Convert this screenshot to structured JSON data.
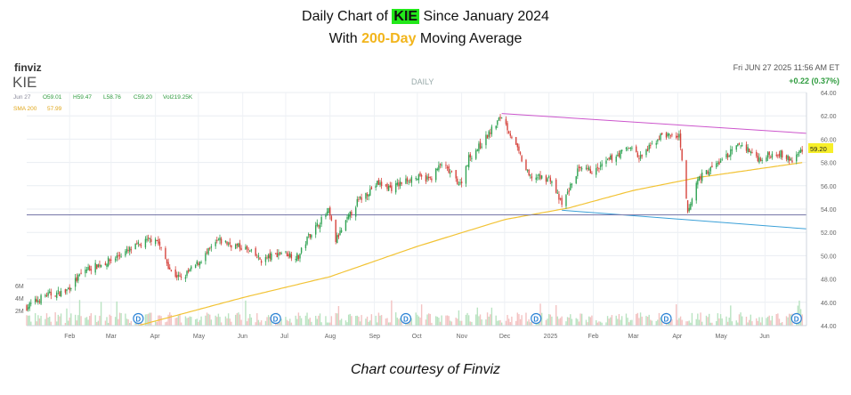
{
  "title": {
    "line1_prefix": "Daily Chart of ",
    "ticker": "KIE",
    "line1_suffix": " Since January 2024",
    "line2_prefix": "With ",
    "sma_label": "200-Day",
    "line2_suffix": " Moving Average"
  },
  "header": {
    "brand": "finviz",
    "ticker": "KIE",
    "interval": "DAILY",
    "datetime": "Fri JUN 27 2025 11:56 AM ET",
    "change": "+0.22 (0.37%)",
    "ohlc": {
      "date": "Jun 27",
      "open": "O59.01",
      "high": "H59.47",
      "low": "L58.76",
      "close": "C59.20",
      "volume": "Vol219.25K"
    },
    "sma": {
      "label": "SMA 200",
      "value": "57.99"
    },
    "last_price": "59.20"
  },
  "credit": "Chart courtesy of Finviz",
  "colors": {
    "up": "#31a354",
    "down": "#d6443d",
    "sma": "#f2c335",
    "upper_trend": "#cc55cc",
    "lower_trend": "#3aa0d8",
    "horizontal": "#7676a8",
    "dividend": "#2b83d6"
  },
  "chart_data": {
    "type": "candlestick",
    "ylim": [
      44,
      64
    ],
    "y_ticks": [
      "44.00",
      "46.00",
      "48.00",
      "50.00",
      "52.00",
      "54.00",
      "56.00",
      "58.00",
      "60.00",
      "62.00",
      "64.00"
    ],
    "x_ticks": [
      "Feb",
      "Mar",
      "Apr",
      "May",
      "Jun",
      "Jul",
      "Aug",
      "Sep",
      "Oct",
      "Nov",
      "Dec",
      "2025",
      "Feb",
      "Mar",
      "Apr",
      "May",
      "Jun"
    ],
    "volume_ticks": [
      "6M",
      "4M",
      "2M"
    ],
    "dividend_markers": [
      "D",
      "D",
      "D",
      "D",
      "D",
      "D",
      "D",
      "D"
    ],
    "price_anchors": [
      {
        "date": "2024-01-02",
        "close": 45.6
      },
      {
        "date": "2024-01-15",
        "close": 46.6
      },
      {
        "date": "2024-01-29",
        "close": 46.9
      },
      {
        "date": "2024-02-12",
        "close": 48.8
      },
      {
        "date": "2024-02-26",
        "close": 49.4
      },
      {
        "date": "2024-03-11",
        "close": 50.3
      },
      {
        "date": "2024-03-25",
        "close": 51.2
      },
      {
        "date": "2024-04-01",
        "close": 51.6
      },
      {
        "date": "2024-04-12",
        "close": 48.6
      },
      {
        "date": "2024-04-19",
        "close": 48.0
      },
      {
        "date": "2024-05-01",
        "close": 49.4
      },
      {
        "date": "2024-05-15",
        "close": 51.3
      },
      {
        "date": "2024-06-03",
        "close": 50.6
      },
      {
        "date": "2024-06-14",
        "close": 49.6
      },
      {
        "date": "2024-06-28",
        "close": 50.3
      },
      {
        "date": "2024-07-10",
        "close": 49.9
      },
      {
        "date": "2024-07-17",
        "close": 51.7
      },
      {
        "date": "2024-07-31",
        "close": 53.8
      },
      {
        "date": "2024-08-05",
        "close": 51.3
      },
      {
        "date": "2024-08-20",
        "close": 54.6
      },
      {
        "date": "2024-09-03",
        "close": 56.2
      },
      {
        "date": "2024-09-13",
        "close": 55.8
      },
      {
        "date": "2024-09-27",
        "close": 56.7
      },
      {
        "date": "2024-10-10",
        "close": 56.6
      },
      {
        "date": "2024-10-18",
        "close": 57.9
      },
      {
        "date": "2024-10-31",
        "close": 56.1
      },
      {
        "date": "2024-11-06",
        "close": 58.4
      },
      {
        "date": "2024-11-15",
        "close": 59.6
      },
      {
        "date": "2024-11-29",
        "close": 62.0
      },
      {
        "date": "2024-12-06",
        "close": 60.2
      },
      {
        "date": "2024-12-18",
        "close": 56.8
      },
      {
        "date": "2025-01-02",
        "close": 56.6
      },
      {
        "date": "2025-01-10",
        "close": 54.3
      },
      {
        "date": "2025-01-21",
        "close": 57.3
      },
      {
        "date": "2025-02-03",
        "close": 57.3
      },
      {
        "date": "2025-02-14",
        "close": 58.4
      },
      {
        "date": "2025-02-28",
        "close": 59.4
      },
      {
        "date": "2025-03-05",
        "close": 58.3
      },
      {
        "date": "2025-03-21",
        "close": 60.4
      },
      {
        "date": "2025-04-02",
        "close": 60.2
      },
      {
        "date": "2025-04-08",
        "close": 53.6
      },
      {
        "date": "2025-04-15",
        "close": 56.6
      },
      {
        "date": "2025-04-30",
        "close": 58.0
      },
      {
        "date": "2025-05-15",
        "close": 59.6
      },
      {
        "date": "2025-05-28",
        "close": 58.3
      },
      {
        "date": "2025-06-10",
        "close": 58.9
      },
      {
        "date": "2025-06-20",
        "close": 58.1
      },
      {
        "date": "2025-06-27",
        "close": 59.2
      }
    ],
    "sma200_anchors": [
      {
        "date": "2024-03-20",
        "value": 44.0
      },
      {
        "date": "2024-06-01",
        "value": 46.4
      },
      {
        "date": "2024-08-01",
        "value": 48.2
      },
      {
        "date": "2024-10-01",
        "value": 50.8
      },
      {
        "date": "2024-12-01",
        "value": 53.1
      },
      {
        "date": "2025-01-15",
        "value": 54.1
      },
      {
        "date": "2025-03-01",
        "value": 55.6
      },
      {
        "date": "2025-04-15",
        "value": 56.7
      },
      {
        "date": "2025-06-27",
        "value": 57.99
      }
    ],
    "trendlines": [
      {
        "name": "upper",
        "start": {
          "date": "2024-11-29",
          "value": 62.2
        },
        "end": {
          "date": "2025-06-30",
          "value": 60.5
        }
      },
      {
        "name": "lower",
        "start": {
          "date": "2025-01-10",
          "value": 53.9
        },
        "end": {
          "date": "2025-06-30",
          "value": 52.3
        }
      },
      {
        "name": "horizontal",
        "start": {
          "date": "2024-01-02",
          "value": 53.5
        },
        "end": {
          "date": "2025-06-30",
          "value": 53.5
        }
      }
    ]
  }
}
